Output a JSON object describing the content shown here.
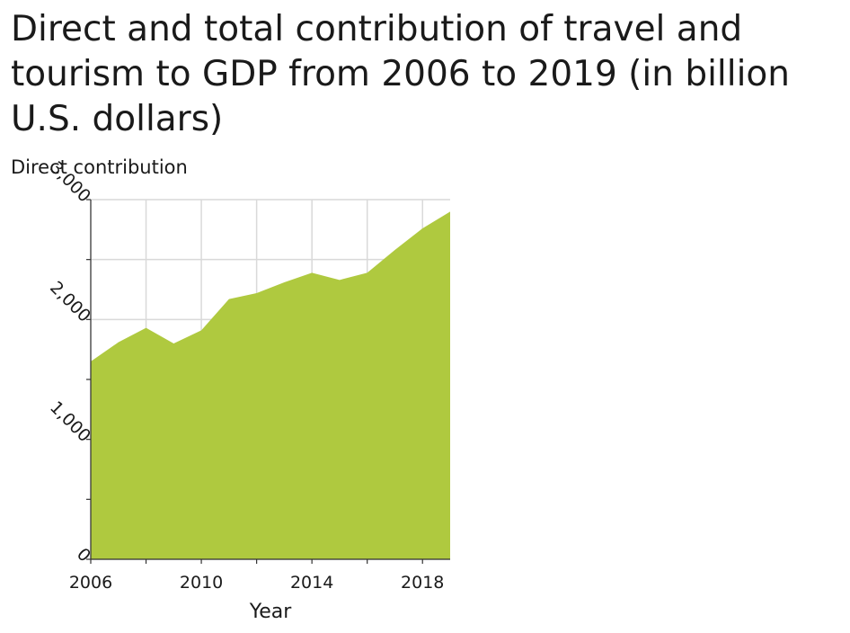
{
  "chart_data": {
    "type": "area",
    "title": "Direct and total contribution of travel and tourism to GDP from 2006 to 2019 (in billion U.S. dollars)",
    "xlabel": "Year",
    "ylabel": "Direct contribution",
    "x": [
      2006,
      2007,
      2008,
      2009,
      2010,
      2011,
      2012,
      2013,
      2014,
      2015,
      2016,
      2017,
      2018,
      2019
    ],
    "xlim": [
      2006,
      2019
    ],
    "ylim": [
      0,
      3000
    ],
    "xticks": [
      2006,
      2008,
      2010,
      2012,
      2014,
      2016,
      2018
    ],
    "xtick_labels": [
      "2006",
      "",
      "2010",
      "",
      "2014",
      "",
      "2018"
    ],
    "yticks": [
      0,
      500,
      1000,
      1500,
      2000,
      2500,
      3000
    ],
    "ytick_labels": [
      "0",
      "",
      "1,000",
      "",
      "2,000",
      "",
      "3,000"
    ],
    "series": [
      {
        "values": [
          1650,
          1810,
          1930,
          1800,
          1910,
          2170,
          2220,
          2310,
          2390,
          2330,
          2390,
          2580,
          2760,
          2900
        ],
        "color": "#afc93f"
      }
    ],
    "grid": true,
    "legend": "none"
  }
}
